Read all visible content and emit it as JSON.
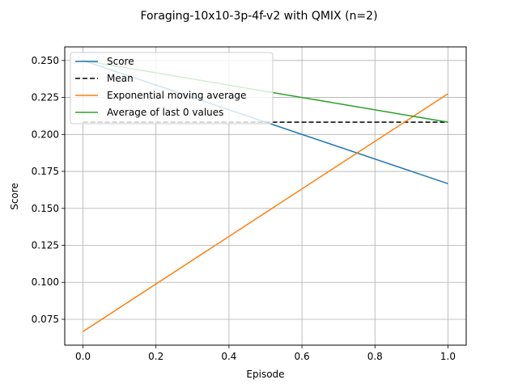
{
  "chart_data": {
    "type": "line",
    "title": "Foraging-10x10-3p-4f-v2 with QMIX (n=2)",
    "xlabel": "Episode",
    "ylabel": "Score",
    "xlim": [
      -0.05,
      1.05
    ],
    "ylim": [
      0.0575,
      0.2592
    ],
    "xticks": [
      0.0,
      0.2,
      0.4,
      0.6,
      0.8,
      1.0
    ],
    "xtick_labels": [
      "0.0",
      "0.2",
      "0.4",
      "0.6",
      "0.8",
      "1.0"
    ],
    "yticks": [
      0.075,
      0.1,
      0.125,
      0.15,
      0.175,
      0.2,
      0.225,
      0.25
    ],
    "ytick_labels": [
      "0.075",
      "0.100",
      "0.125",
      "0.150",
      "0.175",
      "0.200",
      "0.225",
      "0.250"
    ],
    "grid": true,
    "legend_position": "upper-left",
    "series": [
      {
        "name": "Score",
        "color": "#1f77b4",
        "dash": "",
        "x": [
          0,
          1
        ],
        "y": [
          0.25,
          0.1667
        ]
      },
      {
        "name": "Mean",
        "color": "#000000",
        "dash": "6,3",
        "x": [
          0,
          1
        ],
        "y": [
          0.2083,
          0.2083
        ]
      },
      {
        "name": "Exponential moving average",
        "color": "#ff7f0e",
        "dash": "",
        "x": [
          0,
          1
        ],
        "y": [
          0.0667,
          0.2275
        ]
      },
      {
        "name": "Average of last 0 values",
        "color": "#2ca02c",
        "dash": "",
        "x": [
          0,
          1
        ],
        "y": [
          0.25,
          0.2083
        ]
      }
    ]
  }
}
